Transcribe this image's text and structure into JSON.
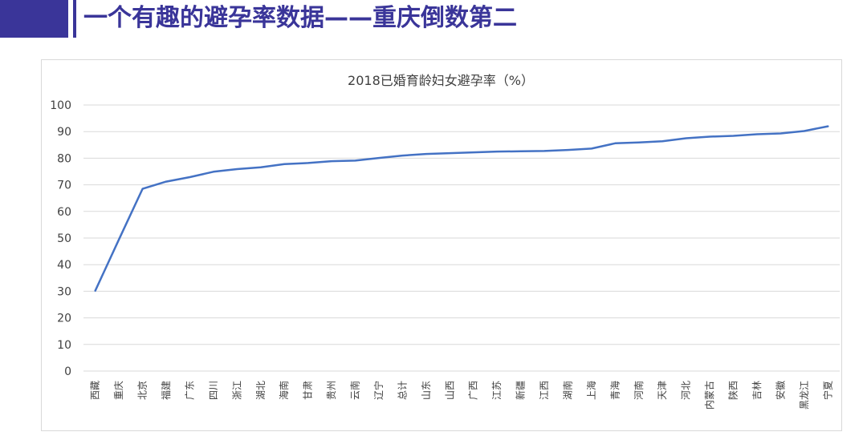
{
  "slide": {
    "title": "一个有趣的避孕率数据——重庆倒数第二"
  },
  "colors": {
    "accent": "#3a3599",
    "series": "#4472c4"
  },
  "chart_data": {
    "type": "line",
    "title": "2018已婚育龄妇女避孕率（%）",
    "xlabel": "",
    "ylabel": "",
    "ylim": [
      0,
      100
    ],
    "yticks": [
      0,
      10,
      20,
      30,
      40,
      50,
      60,
      70,
      80,
      90,
      100
    ],
    "grid": true,
    "legend": "none",
    "categories": [
      "西藏",
      "重庆",
      "北京",
      "福建",
      "广东",
      "四川",
      "浙江",
      "湖北",
      "海南",
      "甘肃",
      "贵州",
      "云南",
      "辽宁",
      "总计",
      "山东",
      "山西",
      "广西",
      "江苏",
      "新疆",
      "江西",
      "湖南",
      "上海",
      "青海",
      "河南",
      "天津",
      "河北",
      "内蒙古",
      "陕西",
      "吉林",
      "安徽",
      "黑龙江",
      "宁夏"
    ],
    "series": [
      {
        "values": [
          30.2,
          49.5,
          68.5,
          71.2,
          72.9,
          74.9,
          75.9,
          76.6,
          77.8,
          78.2,
          78.9,
          79.1,
          80.1,
          81.0,
          81.6,
          81.9,
          82.2,
          82.5,
          82.6,
          82.7,
          83.1,
          83.6,
          85.6,
          85.9,
          86.4,
          87.5,
          88.1,
          88.4,
          89.0,
          89.3,
          90.2,
          92.0
        ]
      }
    ]
  }
}
